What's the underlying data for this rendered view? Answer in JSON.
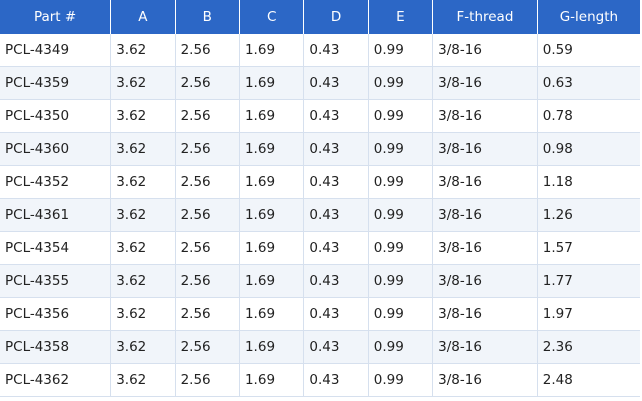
{
  "table": {
    "headers": [
      "Part #",
      "A",
      "B",
      "C",
      "D",
      "E",
      "F-thread",
      "G-length"
    ],
    "rows": [
      [
        "PCL-4349",
        "3.62",
        "2.56",
        "1.69",
        "0.43",
        "0.99",
        "3/8-16",
        "0.59"
      ],
      [
        "PCL-4359",
        "3.62",
        "2.56",
        "1.69",
        "0.43",
        "0.99",
        "3/8-16",
        "0.63"
      ],
      [
        "PCL-4350",
        "3.62",
        "2.56",
        "1.69",
        "0.43",
        "0.99",
        "3/8-16",
        "0.78"
      ],
      [
        "PCL-4360",
        "3.62",
        "2.56",
        "1.69",
        "0.43",
        "0.99",
        "3/8-16",
        "0.98"
      ],
      [
        "PCL-4352",
        "3.62",
        "2.56",
        "1.69",
        "0.43",
        "0.99",
        "3/8-16",
        "1.18"
      ],
      [
        "PCL-4361",
        "3.62",
        "2.56",
        "1.69",
        "0.43",
        "0.99",
        "3/8-16",
        "1.26"
      ],
      [
        "PCL-4354",
        "3.62",
        "2.56",
        "1.69",
        "0.43",
        "0.99",
        "3/8-16",
        "1.57"
      ],
      [
        "PCL-4355",
        "3.62",
        "2.56",
        "1.69",
        "0.43",
        "0.99",
        "3/8-16",
        "1.77"
      ],
      [
        "PCL-4356",
        "3.62",
        "2.56",
        "1.69",
        "0.43",
        "0.99",
        "3/8-16",
        "1.97"
      ],
      [
        "PCL-4358",
        "3.62",
        "2.56",
        "1.69",
        "0.43",
        "0.99",
        "3/8-16",
        "2.36"
      ],
      [
        "PCL-4362",
        "3.62",
        "2.56",
        "1.69",
        "0.43",
        "0.99",
        "3/8-16",
        "2.48"
      ]
    ]
  },
  "colors": {
    "header_bg": "#2c67c6",
    "header_text": "#ffffff",
    "row_alt_bg": "#f1f5fa",
    "grid_line": "#d6e0ee"
  }
}
